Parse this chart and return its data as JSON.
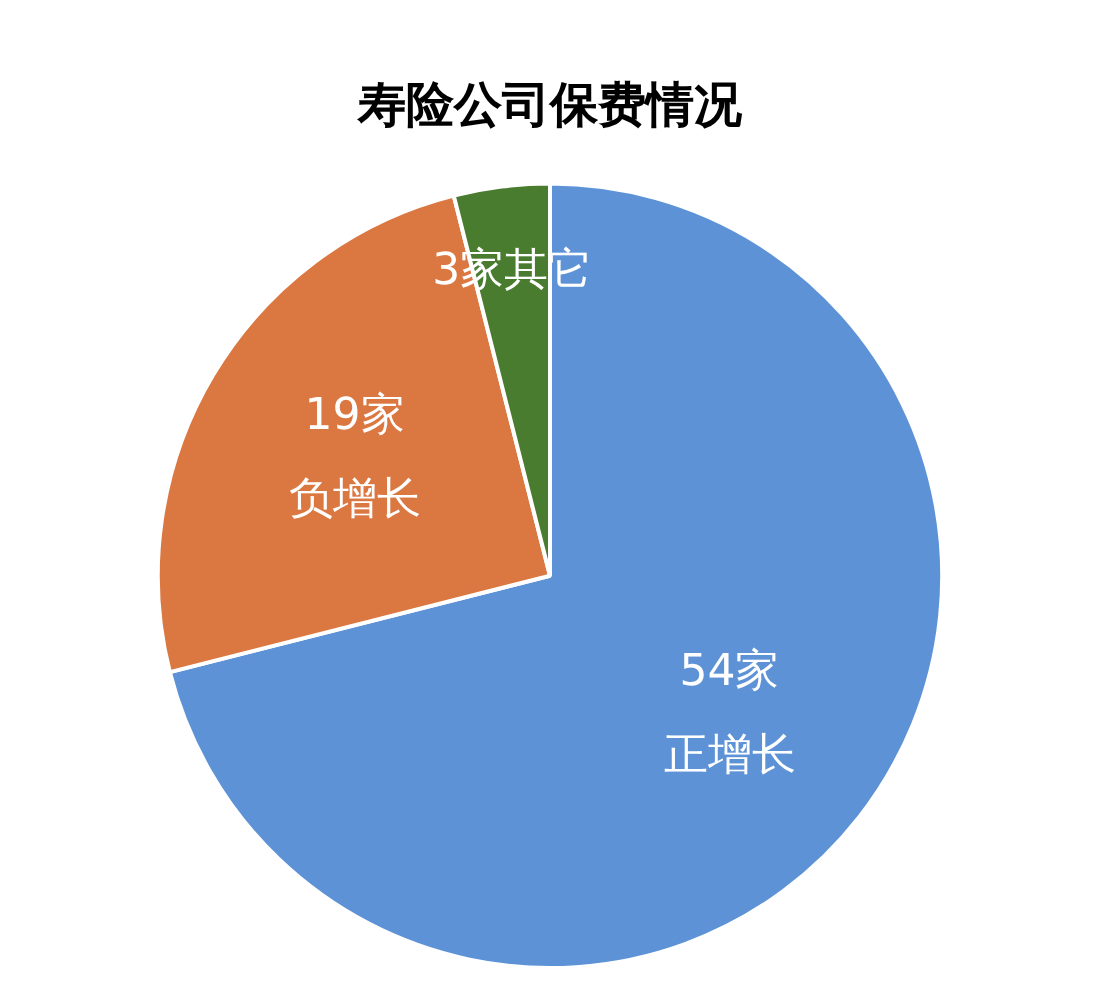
{
  "chart_data": {
    "type": "pie",
    "title": "寿险公司保费情况",
    "categories": [
      "正增长",
      "负增长",
      "其它"
    ],
    "values": [
      54,
      19,
      3
    ],
    "value_labels": [
      "54家",
      "19家",
      "3家"
    ],
    "colors": [
      "#5d93d6",
      "#db7740",
      "#4a7c30"
    ],
    "legend": false
  }
}
